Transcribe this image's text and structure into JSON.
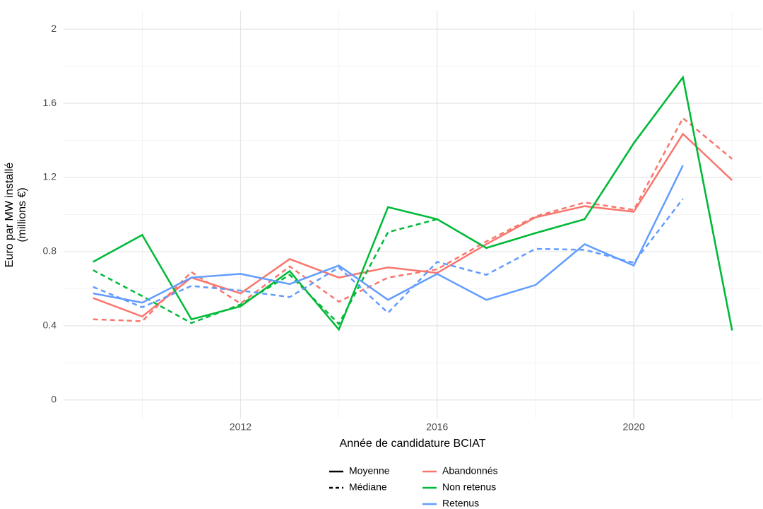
{
  "chart_data": {
    "type": "line",
    "xlabel": "Année de candidature BCIAT",
    "ylabel": [
      "Euro par MW installé",
      "(millions €)"
    ],
    "x": [
      2009,
      2010,
      2011,
      2012,
      2013,
      2014,
      2015,
      2016,
      2017,
      2018,
      2019,
      2020,
      2021,
      2022
    ],
    "statistics": [
      "Moyenne",
      "Médiane"
    ],
    "linetypes": [
      "solid",
      "dashed"
    ],
    "groups": [
      {
        "name": "Abandonnés",
        "color": "#F8766D",
        "mean": [
          0.55,
          0.45,
          0.66,
          0.575,
          0.76,
          0.66,
          0.715,
          0.685,
          0.84,
          0.985,
          1.045,
          1.015,
          1.435,
          1.185
        ],
        "median": [
          0.435,
          0.425,
          0.69,
          0.52,
          0.72,
          0.53,
          0.66,
          0.705,
          0.855,
          0.99,
          1.065,
          1.025,
          1.52,
          1.3
        ]
      },
      {
        "name": "Non retenus",
        "color": "#00BA38",
        "mean": [
          0.745,
          0.89,
          0.435,
          0.505,
          0.695,
          0.38,
          1.04,
          0.975,
          0.82,
          0.9,
          0.975,
          1.385,
          1.74,
          0.375
        ],
        "median": [
          0.7,
          0.56,
          0.415,
          0.515,
          0.675,
          0.41,
          0.905,
          0.975,
          0.82,
          0.9,
          0.975,
          1.385,
          1.74,
          0.375
        ]
      },
      {
        "name": "Retenus",
        "color": "#619CFF",
        "mean": [
          0.575,
          0.525,
          0.66,
          0.68,
          0.625,
          0.725,
          0.54,
          0.68,
          0.54,
          0.62,
          0.84,
          0.725,
          1.265,
          null
        ],
        "median": [
          0.61,
          0.5,
          0.615,
          0.59,
          0.555,
          0.715,
          0.47,
          0.745,
          0.675,
          0.815,
          0.81,
          0.74,
          1.085,
          null
        ]
      }
    ],
    "xlim": [
      2008.4,
      2022.6
    ],
    "ylim": [
      -0.1,
      2.1
    ],
    "xticks": [
      2012,
      2016,
      2020
    ],
    "yticks": [
      0,
      0.4,
      0.8,
      1.2,
      1.6,
      2
    ],
    "xminor_ticks": [
      2010,
      2014,
      2018,
      2022
    ],
    "yminor_ticks": [
      0.2,
      0.6,
      1,
      1.4,
      1.8
    ],
    "grid": true
  }
}
